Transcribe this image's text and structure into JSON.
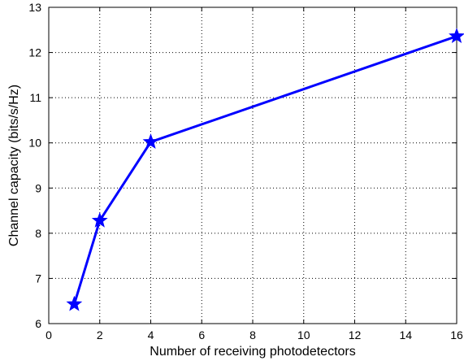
{
  "chart_data": {
    "type": "line",
    "title": "",
    "xlabel": "Number of receiving photodetectors",
    "ylabel": "Channel capacity (bits/s/Hz)",
    "xlim": [
      0,
      16
    ],
    "ylim": [
      6,
      13
    ],
    "xticks": [
      0,
      2,
      4,
      6,
      8,
      10,
      12,
      14,
      16
    ],
    "yticks": [
      6,
      7,
      8,
      9,
      10,
      11,
      12,
      13
    ],
    "grid": true,
    "grid_style": "dotted",
    "legend": "none",
    "series": [
      {
        "color": "#0000ff",
        "marker": "pentagram",
        "x": [
          1,
          2,
          4,
          16
        ],
        "y": [
          6.43,
          8.28,
          10.02,
          12.36
        ]
      }
    ]
  }
}
